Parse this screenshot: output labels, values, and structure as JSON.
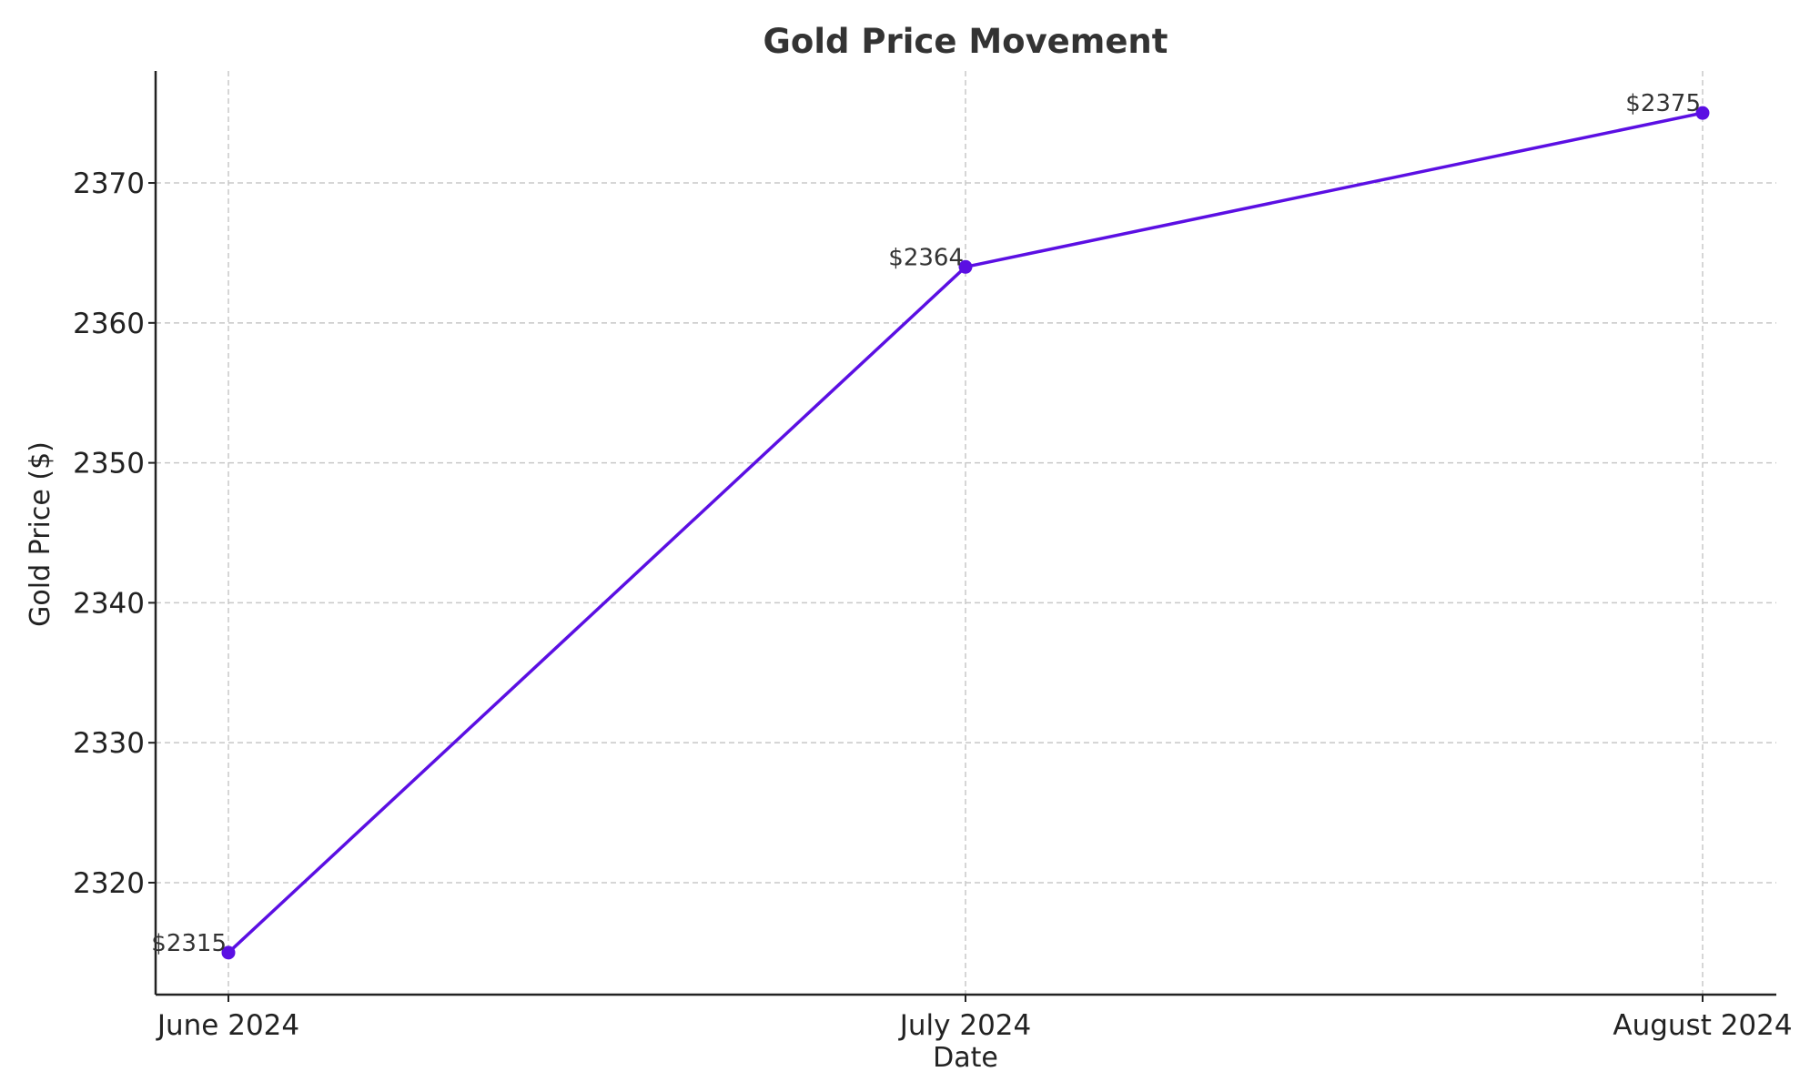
{
  "chart_data": {
    "type": "line",
    "title": "Gold Price Movement",
    "xlabel": "Date",
    "ylabel": "Gold Price ($)",
    "categories": [
      "June 2024",
      "July 2024",
      "August 2024"
    ],
    "series": [
      {
        "values": [
          2315,
          2364,
          2375
        ],
        "data_labels": [
          "$2315",
          "$2364",
          "$2375"
        ],
        "color": "#5b0fe3"
      }
    ],
    "ylim": [
      2312,
      2378
    ],
    "yticks": [
      2320,
      2330,
      2340,
      2350,
      2360,
      2370
    ],
    "ytick_labels": [
      "2320",
      "2330",
      "2340",
      "2350",
      "2360",
      "2370"
    ],
    "grid": true,
    "grid_color": "#c8c8c8"
  }
}
